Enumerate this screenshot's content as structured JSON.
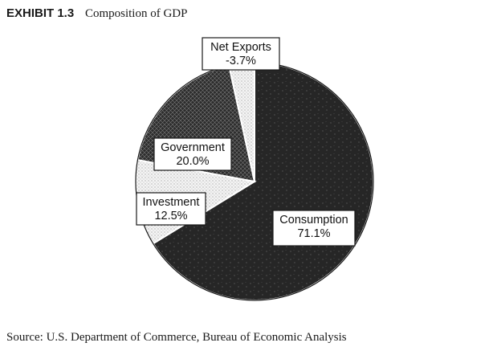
{
  "exhibit": {
    "label": "EXHIBIT 1.3",
    "title": "Composition of GDP"
  },
  "source": "Source:  U.S. Department of Commerce, Bureau of Economic Analysis",
  "chart_data": {
    "type": "pie",
    "title": "Composition of GDP",
    "slices": [
      {
        "name": "Consumption",
        "value": 71.1,
        "value_label": "71.1%",
        "fill": "dark-speckled"
      },
      {
        "name": "Investment",
        "value": 12.5,
        "value_label": "12.5%",
        "fill": "light-dotted"
      },
      {
        "name": "Government",
        "value": 20.0,
        "value_label": "20.0%",
        "fill": "dark-crosshatch"
      },
      {
        "name": "Net Exports",
        "value": -3.7,
        "value_label": "-3.7%",
        "fill": "light-dotted"
      }
    ],
    "colors": {
      "dark": "#262626",
      "light": "#f2f2f2"
    }
  }
}
